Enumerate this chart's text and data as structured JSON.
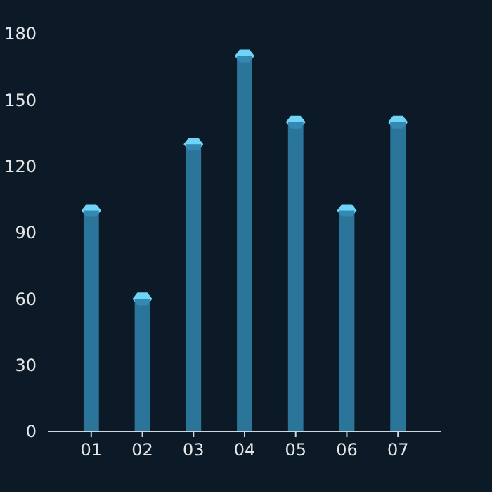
{
  "chart_data": {
    "type": "bar",
    "categories": [
      "01",
      "02",
      "03",
      "04",
      "05",
      "06",
      "07"
    ],
    "values": [
      100,
      60,
      130,
      170,
      140,
      100,
      140
    ],
    "color": "#2f7fa8",
    "ylim": [
      0,
      180
    ],
    "yticks": [
      0,
      30,
      60,
      90,
      120,
      150,
      180
    ],
    "grid": false
  }
}
